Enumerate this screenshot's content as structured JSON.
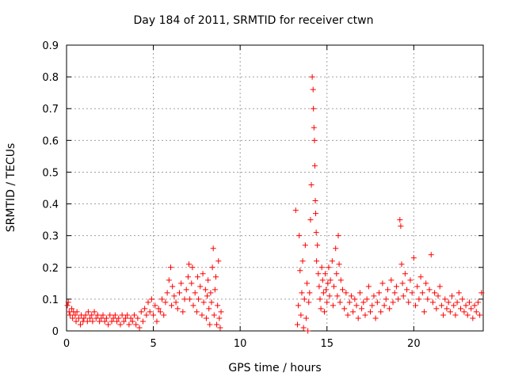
{
  "chart_data": {
    "type": "scatter",
    "title": "Day 184 of 2011, SRMTID for receiver ctwn",
    "xlabel": "GPS time / hours",
    "ylabel": "SRMTID / TECUs",
    "xlim": [
      0,
      24
    ],
    "ylim": [
      0,
      0.9
    ],
    "xticks": [
      0,
      5,
      10,
      15,
      20
    ],
    "yticks": [
      0,
      0.1,
      0.2,
      0.3,
      0.4,
      0.5,
      0.6,
      0.7,
      0.8,
      0.9
    ],
    "xtick_labels": [
      "0",
      "5",
      "10",
      "15",
      "20"
    ],
    "ytick_labels": [
      "0",
      "0.1",
      "0.2",
      "0.3",
      "0.4",
      "0.5",
      "0.6",
      "0.7",
      "0.8",
      "0.9"
    ],
    "grid": true,
    "marker": "+",
    "color": "#ff0000",
    "series": [
      {
        "name": "SRMTID",
        "points": [
          [
            0.05,
            0.08
          ],
          [
            0.1,
            0.09
          ],
          [
            0.15,
            0.06
          ],
          [
            0.2,
            0.05
          ],
          [
            0.3,
            0.07
          ],
          [
            0.35,
            0.04
          ],
          [
            0.4,
            0.06
          ],
          [
            0.5,
            0.05
          ],
          [
            0.55,
            0.03
          ],
          [
            0.6,
            0.06
          ],
          [
            0.7,
            0.04
          ],
          [
            0.8,
            0.02
          ],
          [
            0.85,
            0.05
          ],
          [
            0.95,
            0.03
          ],
          [
            1.0,
            0.04
          ],
          [
            1.1,
            0.05
          ],
          [
            1.2,
            0.03
          ],
          [
            1.25,
            0.06
          ],
          [
            1.35,
            0.04
          ],
          [
            1.45,
            0.05
          ],
          [
            1.5,
            0.03
          ],
          [
            1.6,
            0.06
          ],
          [
            1.7,
            0.04
          ],
          [
            1.8,
            0.05
          ],
          [
            1.9,
            0.03
          ],
          [
            2.0,
            0.04
          ],
          [
            2.1,
            0.05
          ],
          [
            2.2,
            0.03
          ],
          [
            2.3,
            0.04
          ],
          [
            2.4,
            0.02
          ],
          [
            2.5,
            0.05
          ],
          [
            2.6,
            0.03
          ],
          [
            2.7,
            0.04
          ],
          [
            2.8,
            0.05
          ],
          [
            2.9,
            0.03
          ],
          [
            3.0,
            0.04
          ],
          [
            3.1,
            0.02
          ],
          [
            3.2,
            0.05
          ],
          [
            3.3,
            0.03
          ],
          [
            3.4,
            0.04
          ],
          [
            3.5,
            0.05
          ],
          [
            3.6,
            0.02
          ],
          [
            3.7,
            0.04
          ],
          [
            3.8,
            0.03
          ],
          [
            3.9,
            0.05
          ],
          [
            4.0,
            0.02
          ],
          [
            4.1,
            0.04
          ],
          [
            4.2,
            0.01
          ],
          [
            4.3,
            0.06
          ],
          [
            4.4,
            0.03
          ],
          [
            4.5,
            0.07
          ],
          [
            4.6,
            0.05
          ],
          [
            4.7,
            0.09
          ],
          [
            4.8,
            0.06
          ],
          [
            4.9,
            0.1
          ],
          [
            5.0,
            0.05
          ],
          [
            5.1,
            0.08
          ],
          [
            5.2,
            0.03
          ],
          [
            5.3,
            0.07
          ],
          [
            5.4,
            0.06
          ],
          [
            5.5,
            0.1
          ],
          [
            5.6,
            0.05
          ],
          [
            5.7,
            0.09
          ],
          [
            5.8,
            0.12
          ],
          [
            5.9,
            0.16
          ],
          [
            6.0,
            0.2
          ],
          [
            6.05,
            0.08
          ],
          [
            6.1,
            0.14
          ],
          [
            6.2,
            0.11
          ],
          [
            6.3,
            0.09
          ],
          [
            6.4,
            0.07
          ],
          [
            6.5,
            0.12
          ],
          [
            6.6,
            0.15
          ],
          [
            6.7,
            0.06
          ],
          [
            6.8,
            0.1
          ],
          [
            6.9,
            0.13
          ],
          [
            7.0,
            0.17
          ],
          [
            7.05,
            0.21
          ],
          [
            7.1,
            0.1
          ],
          [
            7.2,
            0.15
          ],
          [
            7.25,
            0.2
          ],
          [
            7.3,
            0.08
          ],
          [
            7.4,
            0.12
          ],
          [
            7.5,
            0.06
          ],
          [
            7.55,
            0.17
          ],
          [
            7.6,
            0.1
          ],
          [
            7.7,
            0.14
          ],
          [
            7.8,
            0.05
          ],
          [
            7.85,
            0.18
          ],
          [
            7.9,
            0.09
          ],
          [
            8.0,
            0.13
          ],
          [
            8.05,
            0.04
          ],
          [
            8.1,
            0.11
          ],
          [
            8.15,
            0.16
          ],
          [
            8.2,
            0.07
          ],
          [
            8.25,
            0.02
          ],
          [
            8.3,
            0.12
          ],
          [
            8.35,
            0.09
          ],
          [
            8.4,
            0.2
          ],
          [
            8.45,
            0.26
          ],
          [
            8.5,
            0.05
          ],
          [
            8.55,
            0.13
          ],
          [
            8.6,
            0.17
          ],
          [
            8.65,
            0.02
          ],
          [
            8.7,
            0.08
          ],
          [
            8.75,
            0.22
          ],
          [
            8.8,
            0.04
          ],
          [
            8.85,
            0.01
          ],
          [
            8.9,
            0.06
          ],
          [
            13.2,
            0.38
          ],
          [
            13.3,
            0.02
          ],
          [
            13.35,
            0.08
          ],
          [
            13.4,
            0.3
          ],
          [
            13.45,
            0.19
          ],
          [
            13.5,
            0.05
          ],
          [
            13.55,
            0.12
          ],
          [
            13.6,
            0.22
          ],
          [
            13.65,
            0.01
          ],
          [
            13.7,
            0.1
          ],
          [
            13.75,
            0.27
          ],
          [
            13.8,
            0.04
          ],
          [
            13.85,
            0.15
          ],
          [
            13.9,
            0.0
          ],
          [
            13.95,
            0.09
          ],
          [
            14.0,
            0.12
          ],
          [
            14.05,
            0.35
          ],
          [
            14.1,
            0.46
          ],
          [
            14.15,
            0.8
          ],
          [
            14.2,
            0.76
          ],
          [
            14.22,
            0.7
          ],
          [
            14.25,
            0.64
          ],
          [
            14.28,
            0.6
          ],
          [
            14.3,
            0.52
          ],
          [
            14.33,
            0.41
          ],
          [
            14.35,
            0.37
          ],
          [
            14.38,
            0.31
          ],
          [
            14.4,
            0.22
          ],
          [
            14.45,
            0.27
          ],
          [
            14.5,
            0.18
          ],
          [
            14.55,
            0.14
          ],
          [
            14.6,
            0.1
          ],
          [
            14.65,
            0.07
          ],
          [
            14.7,
            0.2
          ],
          [
            14.75,
            0.16
          ],
          [
            14.8,
            0.12
          ],
          [
            14.85,
            0.06
          ],
          [
            14.9,
            0.18
          ],
          [
            14.95,
            0.13
          ],
          [
            15.0,
            0.09
          ],
          [
            15.05,
            0.15
          ],
          [
            15.1,
            0.2
          ],
          [
            15.15,
            0.11
          ],
          [
            15.2,
            0.16
          ],
          [
            15.3,
            0.22
          ],
          [
            15.35,
            0.08
          ],
          [
            15.4,
            0.14
          ],
          [
            15.5,
            0.26
          ],
          [
            15.55,
            0.18
          ],
          [
            15.6,
            0.11
          ],
          [
            15.65,
            0.3
          ],
          [
            15.7,
            0.21
          ],
          [
            15.75,
            0.09
          ],
          [
            15.8,
            0.16
          ],
          [
            15.9,
            0.13
          ],
          [
            16.0,
            0.07
          ],
          [
            16.1,
            0.12
          ],
          [
            16.2,
            0.05
          ],
          [
            16.3,
            0.09
          ],
          [
            16.4,
            0.11
          ],
          [
            16.5,
            0.06
          ],
          [
            16.6,
            0.1
          ],
          [
            16.7,
            0.08
          ],
          [
            16.8,
            0.04
          ],
          [
            16.9,
            0.12
          ],
          [
            17.0,
            0.07
          ],
          [
            17.1,
            0.09
          ],
          [
            17.2,
            0.05
          ],
          [
            17.3,
            0.1
          ],
          [
            17.4,
            0.14
          ],
          [
            17.5,
            0.06
          ],
          [
            17.6,
            0.08
          ],
          [
            17.7,
            0.11
          ],
          [
            17.8,
            0.04
          ],
          [
            17.9,
            0.09
          ],
          [
            18.0,
            0.12
          ],
          [
            18.1,
            0.06
          ],
          [
            18.2,
            0.15
          ],
          [
            18.3,
            0.08
          ],
          [
            18.4,
            0.1
          ],
          [
            18.5,
            0.13
          ],
          [
            18.6,
            0.07
          ],
          [
            18.7,
            0.16
          ],
          [
            18.8,
            0.09
          ],
          [
            18.9,
            0.12
          ],
          [
            19.0,
            0.14
          ],
          [
            19.1,
            0.1
          ],
          [
            19.2,
            0.35
          ],
          [
            19.25,
            0.33
          ],
          [
            19.3,
            0.21
          ],
          [
            19.35,
            0.15
          ],
          [
            19.4,
            0.11
          ],
          [
            19.5,
            0.18
          ],
          [
            19.6,
            0.13
          ],
          [
            19.7,
            0.09
          ],
          [
            19.8,
            0.16
          ],
          [
            19.9,
            0.12
          ],
          [
            20.0,
            0.23
          ],
          [
            20.1,
            0.08
          ],
          [
            20.2,
            0.14
          ],
          [
            20.3,
            0.1
          ],
          [
            20.4,
            0.17
          ],
          [
            20.5,
            0.12
          ],
          [
            20.6,
            0.06
          ],
          [
            20.7,
            0.15
          ],
          [
            20.8,
            0.1
          ],
          [
            20.9,
            0.13
          ],
          [
            21.0,
            0.24
          ],
          [
            21.1,
            0.09
          ],
          [
            21.2,
            0.12
          ],
          [
            21.3,
            0.07
          ],
          [
            21.4,
            0.11
          ],
          [
            21.5,
            0.14
          ],
          [
            21.6,
            0.08
          ],
          [
            21.7,
            0.05
          ],
          [
            21.8,
            0.1
          ],
          [
            21.9,
            0.07
          ],
          [
            22.0,
            0.09
          ],
          [
            22.1,
            0.06
          ],
          [
            22.2,
            0.11
          ],
          [
            22.3,
            0.08
          ],
          [
            22.4,
            0.05
          ],
          [
            22.5,
            0.09
          ],
          [
            22.6,
            0.12
          ],
          [
            22.7,
            0.07
          ],
          [
            22.8,
            0.1
          ],
          [
            22.9,
            0.06
          ],
          [
            23.0,
            0.08
          ],
          [
            23.1,
            0.05
          ],
          [
            23.2,
            0.09
          ],
          [
            23.3,
            0.07
          ],
          [
            23.4,
            0.04
          ],
          [
            23.5,
            0.08
          ],
          [
            23.6,
            0.06
          ],
          [
            23.7,
            0.09
          ],
          [
            23.8,
            0.05
          ],
          [
            23.9,
            0.12
          ]
        ]
      }
    ]
  }
}
